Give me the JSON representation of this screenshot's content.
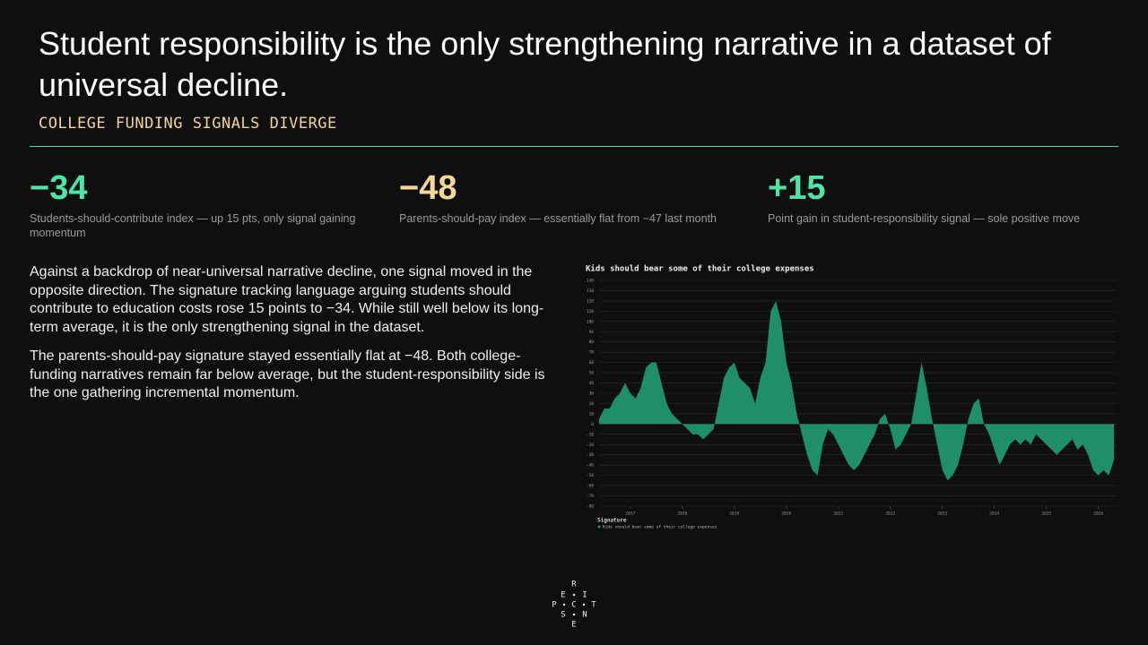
{
  "header": {
    "title": "Student responsibility is the only strengthening narrative in a dataset of universal decline.",
    "subtitle": "COLLEGE FUNDING SIGNALS DIVERGE"
  },
  "stats": [
    {
      "value": "−34",
      "caption": "Students-should-contribute index — up 15 pts, only signal gaining momentum"
    },
    {
      "value": "−48",
      "caption": "Parents-should-pay index — essentially flat from −47 last month"
    },
    {
      "value": "+15",
      "caption": "Point gain in student-responsibility signal — sole positive move"
    }
  ],
  "body": [
    "Against a backdrop of near-universal narrative decline, one signal moved in the opposite direction. The signature tracking language arguing students should contribute to education costs rose 15 points to −34. While still well below its long-term average, it is the only strengthening signal in the dataset.",
    "The parents-should-pay signature stayed essentially flat at −48. Both college-funding narratives remain far below average, but the student-responsibility side is the one gathering incremental momentum."
  ],
  "chart_data": {
    "type": "area",
    "title": "Kids should bear some of their college expenses",
    "legend_title": "Signature",
    "grid": true,
    "x": [
      2016.4,
      2016.5,
      2016.6,
      2016.7,
      2016.8,
      2016.9,
      2017.0,
      2017.1,
      2017.2,
      2017.3,
      2017.4,
      2017.5,
      2017.6,
      2017.7,
      2017.8,
      2017.9,
      2018.0,
      2018.1,
      2018.2,
      2018.3,
      2018.4,
      2018.5,
      2018.6,
      2018.7,
      2018.8,
      2018.9,
      2019.0,
      2019.1,
      2019.2,
      2019.3,
      2019.4,
      2019.5,
      2019.6,
      2019.7,
      2019.8,
      2019.9,
      2020.0,
      2020.1,
      2020.2,
      2020.3,
      2020.4,
      2020.5,
      2020.6,
      2020.7,
      2020.8,
      2020.9,
      2021.0,
      2021.1,
      2021.2,
      2021.3,
      2021.4,
      2021.5,
      2021.6,
      2021.7,
      2021.8,
      2021.9,
      2022.0,
      2022.1,
      2022.2,
      2022.3,
      2022.4,
      2022.5,
      2022.6,
      2022.7,
      2022.8,
      2022.9,
      2023.0,
      2023.1,
      2023.2,
      2023.3,
      2023.4,
      2023.5,
      2023.6,
      2023.7,
      2023.8,
      2023.9,
      2024.0,
      2024.1,
      2024.2,
      2024.3,
      2024.4,
      2024.5,
      2024.6,
      2024.7,
      2024.8,
      2024.9,
      2025.0,
      2025.1,
      2025.2,
      2025.3,
      2025.4,
      2025.5,
      2025.6,
      2025.7,
      2025.8,
      2025.9,
      2026.0,
      2026.1,
      2026.2,
      2026.3
    ],
    "series": [
      {
        "name": "Kids should bear some of their college expenses",
        "color": "#1f8f6a",
        "values": [
          5,
          15,
          15,
          25,
          30,
          40,
          30,
          25,
          35,
          55,
          60,
          60,
          40,
          20,
          10,
          5,
          0,
          -5,
          -10,
          -10,
          -15,
          -10,
          -5,
          20,
          45,
          55,
          60,
          45,
          40,
          35,
          20,
          45,
          60,
          110,
          120,
          100,
          60,
          40,
          10,
          -10,
          -30,
          -45,
          -50,
          -20,
          -5,
          -10,
          -20,
          -30,
          -40,
          -45,
          -40,
          -30,
          -20,
          -10,
          5,
          10,
          -5,
          -25,
          -20,
          -10,
          0,
          30,
          60,
          35,
          5,
          -20,
          -45,
          -55,
          -50,
          -40,
          -20,
          5,
          20,
          25,
          0,
          -10,
          -25,
          -40,
          -30,
          -20,
          -15,
          -20,
          -15,
          -20,
          -10,
          -15,
          -20,
          -25,
          -30,
          -25,
          -20,
          -15,
          -25,
          -20,
          -30,
          -45,
          -50,
          -45,
          -50,
          -35
        ]
      }
    ],
    "xlim": [
      2016.4,
      2026.35
    ],
    "xticks": [
      2017,
      2018,
      2019,
      2020,
      2021,
      2022,
      2023,
      2024,
      2025,
      2026
    ],
    "ylim": [
      -80,
      140
    ],
    "yticks": [
      -80,
      -70,
      -60,
      -50,
      -40,
      -30,
      -20,
      -10,
      0,
      10,
      20,
      30,
      40,
      50,
      60,
      70,
      80,
      90,
      100,
      110,
      120,
      130,
      140
    ]
  },
  "logo": {
    "letters": [
      "R",
      "E",
      "I",
      "P",
      "C",
      "T",
      "S",
      "N",
      "E"
    ]
  }
}
